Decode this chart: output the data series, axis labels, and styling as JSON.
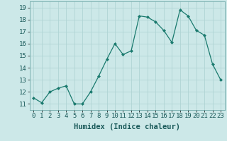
{
  "x": [
    0,
    1,
    2,
    3,
    4,
    5,
    6,
    7,
    8,
    9,
    10,
    11,
    12,
    13,
    14,
    15,
    16,
    17,
    18,
    19,
    20,
    21,
    22,
    23
  ],
  "y": [
    11.5,
    11.1,
    12.0,
    12.3,
    12.5,
    11.0,
    11.0,
    12.0,
    13.3,
    14.7,
    16.0,
    15.1,
    15.4,
    18.3,
    18.2,
    17.8,
    17.1,
    16.1,
    18.8,
    18.3,
    17.1,
    16.7,
    14.3,
    13.0
  ],
  "line_color": "#1a7a6e",
  "marker": "D",
  "marker_size": 2.0,
  "bg_color": "#cce8e8",
  "grid_color": "#b0d4d4",
  "xlabel": "Humidex (Indice chaleur)",
  "ylim": [
    10.5,
    19.5
  ],
  "xlim": [
    -0.5,
    23.5
  ],
  "yticks": [
    11,
    12,
    13,
    14,
    15,
    16,
    17,
    18,
    19
  ],
  "xticks": [
    0,
    1,
    2,
    3,
    4,
    5,
    6,
    7,
    8,
    9,
    10,
    11,
    12,
    13,
    14,
    15,
    16,
    17,
    18,
    19,
    20,
    21,
    22,
    23
  ],
  "label_fontsize": 7.5,
  "tick_fontsize": 6.5
}
